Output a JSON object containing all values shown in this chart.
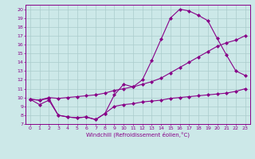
{
  "line1_x": [
    0,
    1,
    2,
    3,
    4,
    5,
    6,
    7,
    8,
    9,
    10,
    11,
    12,
    13,
    14,
    15,
    16,
    17,
    18,
    19,
    20,
    21,
    22,
    23
  ],
  "line1_y": [
    9.8,
    9.2,
    9.7,
    8.0,
    7.8,
    7.7,
    7.8,
    7.5,
    8.2,
    10.3,
    11.5,
    11.2,
    12.0,
    14.2,
    16.6,
    19.0,
    20.0,
    19.8,
    19.3,
    18.7,
    16.7,
    14.8,
    13.0,
    12.5
  ],
  "line2_x": [
    0,
    1,
    2,
    3,
    4,
    5,
    6,
    7,
    8,
    9,
    10,
    11,
    12,
    13,
    14,
    15,
    16,
    17,
    18,
    19,
    20,
    21,
    22,
    23
  ],
  "line2_y": [
    9.8,
    9.7,
    10.0,
    9.9,
    10.0,
    10.1,
    10.2,
    10.3,
    10.5,
    10.8,
    11.0,
    11.2,
    11.5,
    11.8,
    12.2,
    12.8,
    13.4,
    14.0,
    14.6,
    15.2,
    15.8,
    16.2,
    16.5,
    17.0
  ],
  "line3_x": [
    0,
    1,
    2,
    3,
    4,
    5,
    6,
    7,
    8,
    9,
    10,
    11,
    12,
    13,
    14,
    15,
    16,
    17,
    18,
    19,
    20,
    21,
    22,
    23
  ],
  "line3_y": [
    9.8,
    9.7,
    9.9,
    8.0,
    7.8,
    7.7,
    7.8,
    7.5,
    8.2,
    9.0,
    9.2,
    9.3,
    9.5,
    9.6,
    9.7,
    9.9,
    10.0,
    10.1,
    10.2,
    10.3,
    10.4,
    10.5,
    10.7,
    11.0
  ],
  "line_color": "#880088",
  "bg_color": "#cce8e8",
  "grid_color": "#aacccc",
  "xlabel": "Windchill (Refroidissement éolien,°C)",
  "ylim": [
    7,
    20.5
  ],
  "xlim": [
    -0.5,
    23.5
  ],
  "yticks": [
    7,
    8,
    9,
    10,
    11,
    12,
    13,
    14,
    15,
    16,
    17,
    18,
    19,
    20
  ],
  "xticks": [
    0,
    1,
    2,
    3,
    4,
    5,
    6,
    7,
    8,
    9,
    10,
    11,
    12,
    13,
    14,
    15,
    16,
    17,
    18,
    19,
    20,
    21,
    22,
    23
  ],
  "tick_fontsize": 4.5,
  "xlabel_fontsize": 5.0
}
